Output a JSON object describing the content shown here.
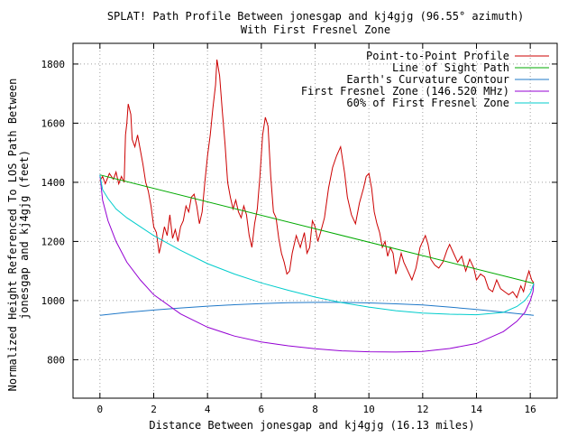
{
  "chart_data": {
    "type": "line",
    "title": "SPLAT! Path Profile Between jonesgap and kj4gjg (96.55° azimuth)",
    "subtitle": "With First Fresnel Zone",
    "xlabel": "Distance Between jonesgap and kj4gjg (16.13 miles)",
    "ylabel_line1": "Normalized Height Referenced To LOS Path Between",
    "ylabel_line2": "jonesgap and kj4gjg (feet)",
    "xlim": [
      -1,
      17
    ],
    "ylim": [
      670,
      1870
    ],
    "x_ticks": [
      {
        "value": 0,
        "label": "0"
      },
      {
        "value": 2,
        "label": "2"
      },
      {
        "value": 4,
        "label": "4"
      },
      {
        "value": 6,
        "label": "6"
      },
      {
        "value": 8,
        "label": "8"
      },
      {
        "value": 10,
        "label": "10"
      },
      {
        "value": 12,
        "label": "12"
      },
      {
        "value": 14,
        "label": "14"
      },
      {
        "value": 16,
        "label": "16"
      }
    ],
    "y_ticks": [
      {
        "value": 800,
        "label": "800"
      },
      {
        "value": 1000,
        "label": "1000"
      },
      {
        "value": 1200,
        "label": "1200"
      },
      {
        "value": 1400,
        "label": "1400"
      },
      {
        "value": 1600,
        "label": "1600"
      },
      {
        "value": 1800,
        "label": "1800"
      }
    ],
    "grid": true,
    "legend_position": "top-right",
    "series": [
      {
        "name": "Point-to-Point Profile",
        "color": "#cc0000",
        "points": [
          [
            0,
            1405
          ],
          [
            0.1,
            1420
          ],
          [
            0.2,
            1395
          ],
          [
            0.35,
            1430
          ],
          [
            0.5,
            1410
          ],
          [
            0.6,
            1435
          ],
          [
            0.7,
            1395
          ],
          [
            0.8,
            1420
          ],
          [
            0.9,
            1400
          ],
          [
            0.95,
            1560
          ],
          [
            1.0,
            1600
          ],
          [
            1.05,
            1665
          ],
          [
            1.15,
            1630
          ],
          [
            1.2,
            1545
          ],
          [
            1.3,
            1520
          ],
          [
            1.4,
            1560
          ],
          [
            1.5,
            1510
          ],
          [
            1.6,
            1460
          ],
          [
            1.7,
            1400
          ],
          [
            1.8,
            1370
          ],
          [
            1.9,
            1320
          ],
          [
            2.0,
            1250
          ],
          [
            2.1,
            1230
          ],
          [
            2.2,
            1160
          ],
          [
            2.3,
            1200
          ],
          [
            2.4,
            1250
          ],
          [
            2.5,
            1220
          ],
          [
            2.6,
            1290
          ],
          [
            2.7,
            1210
          ],
          [
            2.8,
            1240
          ],
          [
            2.9,
            1200
          ],
          [
            3.0,
            1250
          ],
          [
            3.1,
            1270
          ],
          [
            3.2,
            1320
          ],
          [
            3.3,
            1300
          ],
          [
            3.4,
            1350
          ],
          [
            3.5,
            1360
          ],
          [
            3.6,
            1320
          ],
          [
            3.7,
            1260
          ],
          [
            3.8,
            1300
          ],
          [
            3.9,
            1400
          ],
          [
            4.0,
            1490
          ],
          [
            4.1,
            1560
          ],
          [
            4.2,
            1650
          ],
          [
            4.3,
            1730
          ],
          [
            4.35,
            1815
          ],
          [
            4.45,
            1760
          ],
          [
            4.55,
            1640
          ],
          [
            4.65,
            1530
          ],
          [
            4.75,
            1400
          ],
          [
            4.85,
            1350
          ],
          [
            4.95,
            1310
          ],
          [
            5.05,
            1340
          ],
          [
            5.15,
            1300
          ],
          [
            5.25,
            1280
          ],
          [
            5.35,
            1320
          ],
          [
            5.45,
            1290
          ],
          [
            5.55,
            1220
          ],
          [
            5.65,
            1180
          ],
          [
            5.75,
            1260
          ],
          [
            5.85,
            1310
          ],
          [
            5.95,
            1420
          ],
          [
            6.05,
            1560
          ],
          [
            6.15,
            1620
          ],
          [
            6.25,
            1590
          ],
          [
            6.35,
            1420
          ],
          [
            6.45,
            1300
          ],
          [
            6.55,
            1280
          ],
          [
            6.65,
            1210
          ],
          [
            6.75,
            1160
          ],
          [
            6.85,
            1130
          ],
          [
            6.95,
            1090
          ],
          [
            7.05,
            1100
          ],
          [
            7.15,
            1160
          ],
          [
            7.3,
            1220
          ],
          [
            7.45,
            1180
          ],
          [
            7.6,
            1230
          ],
          [
            7.7,
            1160
          ],
          [
            7.8,
            1180
          ],
          [
            7.9,
            1270
          ],
          [
            8.0,
            1250
          ],
          [
            8.1,
            1200
          ],
          [
            8.2,
            1230
          ],
          [
            8.35,
            1280
          ],
          [
            8.5,
            1380
          ],
          [
            8.65,
            1450
          ],
          [
            8.8,
            1490
          ],
          [
            8.95,
            1520
          ],
          [
            9.1,
            1430
          ],
          [
            9.2,
            1350
          ],
          [
            9.35,
            1290
          ],
          [
            9.5,
            1260
          ],
          [
            9.65,
            1330
          ],
          [
            9.8,
            1380
          ],
          [
            9.9,
            1420
          ],
          [
            10.0,
            1430
          ],
          [
            10.1,
            1380
          ],
          [
            10.2,
            1300
          ],
          [
            10.3,
            1260
          ],
          [
            10.4,
            1230
          ],
          [
            10.5,
            1180
          ],
          [
            10.6,
            1200
          ],
          [
            10.7,
            1150
          ],
          [
            10.8,
            1180
          ],
          [
            10.9,
            1160
          ],
          [
            11.0,
            1090
          ],
          [
            11.1,
            1120
          ],
          [
            11.2,
            1160
          ],
          [
            11.3,
            1130
          ],
          [
            11.45,
            1100
          ],
          [
            11.6,
            1070
          ],
          [
            11.75,
            1110
          ],
          [
            11.9,
            1180
          ],
          [
            12.0,
            1200
          ],
          [
            12.1,
            1220
          ],
          [
            12.2,
            1190
          ],
          [
            12.3,
            1140
          ],
          [
            12.45,
            1120
          ],
          [
            12.6,
            1110
          ],
          [
            12.75,
            1130
          ],
          [
            12.9,
            1170
          ],
          [
            13.0,
            1190
          ],
          [
            13.15,
            1160
          ],
          [
            13.3,
            1130
          ],
          [
            13.45,
            1150
          ],
          [
            13.6,
            1100
          ],
          [
            13.75,
            1140
          ],
          [
            13.9,
            1110
          ],
          [
            14.0,
            1070
          ],
          [
            14.15,
            1090
          ],
          [
            14.3,
            1080
          ],
          [
            14.45,
            1040
          ],
          [
            14.6,
            1030
          ],
          [
            14.75,
            1070
          ],
          [
            14.9,
            1040
          ],
          [
            15.05,
            1030
          ],
          [
            15.2,
            1020
          ],
          [
            15.35,
            1030
          ],
          [
            15.5,
            1010
          ],
          [
            15.65,
            1050
          ],
          [
            15.75,
            1030
          ],
          [
            15.85,
            1070
          ],
          [
            15.95,
            1100
          ],
          [
            16.05,
            1070
          ],
          [
            16.13,
            1060
          ]
        ]
      },
      {
        "name": "Line of Sight Path",
        "color": "#00aa00",
        "points": [
          [
            0,
            1425
          ],
          [
            16.13,
            1058
          ]
        ]
      },
      {
        "name": "Earth's Curvature Contour",
        "color": "#1f78c8",
        "points": [
          [
            0,
            950
          ],
          [
            1,
            960
          ],
          [
            2,
            968
          ],
          [
            3,
            975
          ],
          [
            4,
            981
          ],
          [
            5,
            986
          ],
          [
            6,
            990
          ],
          [
            7,
            993
          ],
          [
            8,
            994
          ],
          [
            9,
            994
          ],
          [
            10,
            992
          ],
          [
            11,
            989
          ],
          [
            12,
            985
          ],
          [
            13,
            978
          ],
          [
            14,
            970
          ],
          [
            15,
            961
          ],
          [
            16.13,
            950
          ]
        ]
      },
      {
        "name": "First Fresnel Zone (146.520 MHz)",
        "color": "#9400d3",
        "points": [
          [
            0,
            1425
          ],
          [
            0.1,
            1340
          ],
          [
            0.3,
            1270
          ],
          [
            0.6,
            1200
          ],
          [
            1,
            1130
          ],
          [
            1.5,
            1070
          ],
          [
            2,
            1020
          ],
          [
            3,
            955
          ],
          [
            4,
            910
          ],
          [
            5,
            880
          ],
          [
            6,
            860
          ],
          [
            7,
            847
          ],
          [
            8,
            837
          ],
          [
            9,
            830
          ],
          [
            10,
            827
          ],
          [
            11,
            826
          ],
          [
            12,
            828
          ],
          [
            13,
            838
          ],
          [
            14,
            855
          ],
          [
            15,
            895
          ],
          [
            15.5,
            930
          ],
          [
            15.8,
            960
          ],
          [
            16.0,
            1000
          ],
          [
            16.1,
            1030
          ],
          [
            16.13,
            1058
          ]
        ]
      },
      {
        "name": "60% of First Fresnel Zone",
        "color": "#00cccc",
        "points": [
          [
            0,
            1425
          ],
          [
            0.1,
            1375
          ],
          [
            0.3,
            1345
          ],
          [
            0.6,
            1310
          ],
          [
            1,
            1280
          ],
          [
            1.5,
            1250
          ],
          [
            2,
            1220
          ],
          [
            3,
            1170
          ],
          [
            4,
            1125
          ],
          [
            5,
            1090
          ],
          [
            6,
            1060
          ],
          [
            7,
            1035
          ],
          [
            8,
            1012
          ],
          [
            9,
            993
          ],
          [
            10,
            978
          ],
          [
            11,
            966
          ],
          [
            12,
            958
          ],
          [
            13,
            954
          ],
          [
            14,
            952
          ],
          [
            15,
            960
          ],
          [
            15.5,
            980
          ],
          [
            15.8,
            1000
          ],
          [
            16.0,
            1025
          ],
          [
            16.13,
            1058
          ]
        ]
      }
    ]
  }
}
